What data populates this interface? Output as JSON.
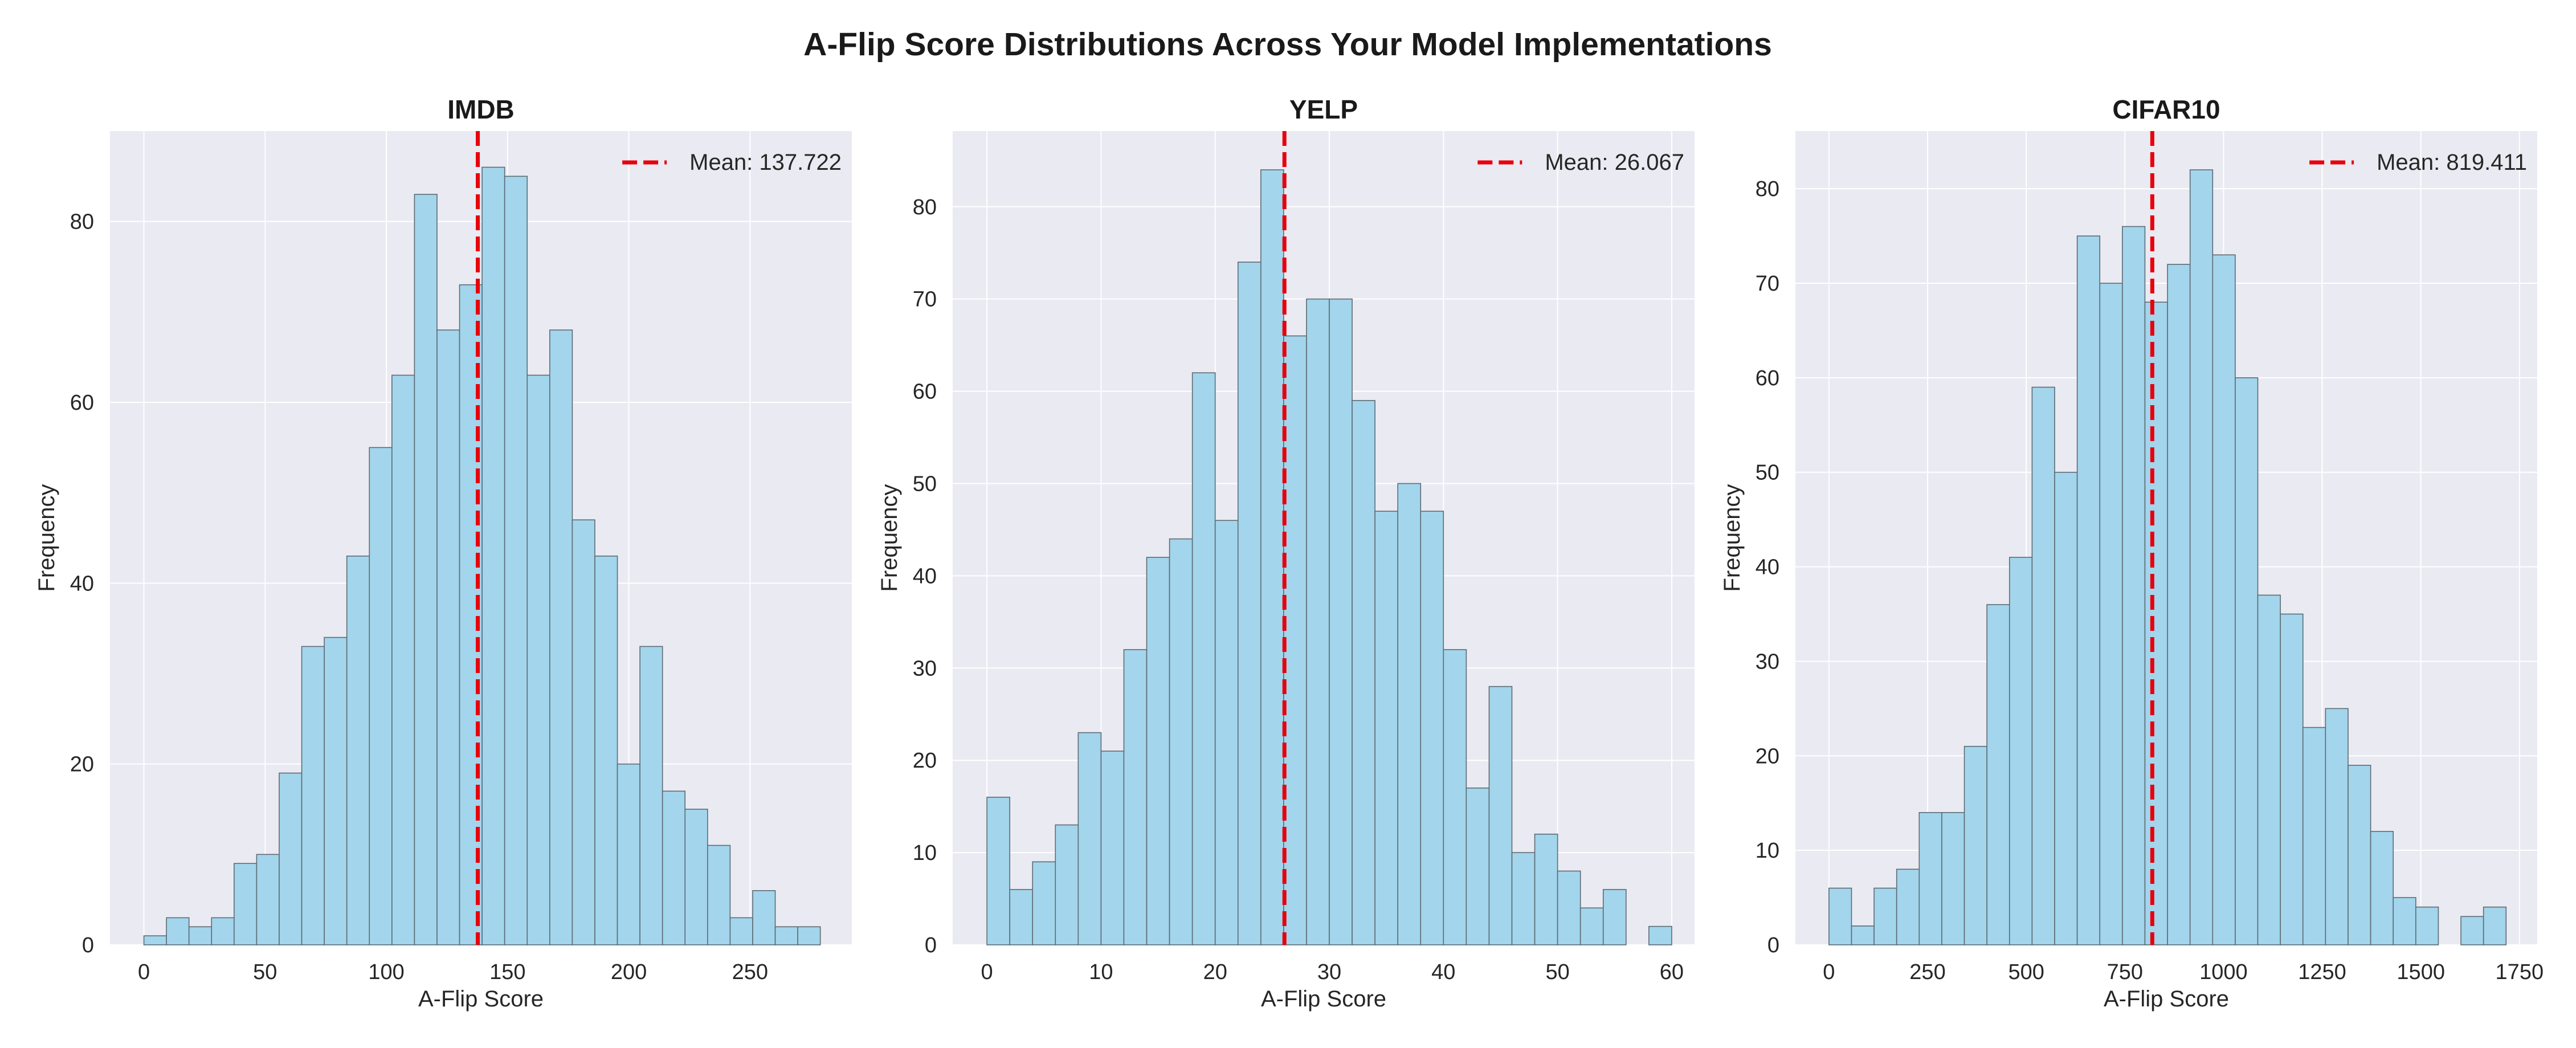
{
  "figure": {
    "suptitle": "A-Flip Score Distributions Across Your Model Implementations"
  },
  "chart_data": [
    {
      "type": "bar",
      "title": "IMDB",
      "xlabel": "A-Flip Score",
      "ylabel": "Frequency",
      "xlim": [
        -14,
        292
      ],
      "ylim": [
        0,
        90
      ],
      "xticks": [
        0,
        50,
        100,
        150,
        200,
        250
      ],
      "yticks": [
        0,
        20,
        40,
        60,
        80
      ],
      "grid": true,
      "legend": {
        "position": "top-right",
        "entries": [
          "Mean: 137.722"
        ]
      },
      "mean": 137.722,
      "bin_start": 0,
      "bin_width": 9.3,
      "bar_color": "#a3d5ec",
      "mean_color": "#e8000b",
      "values": [
        1,
        3,
        2,
        3,
        9,
        10,
        19,
        33,
        34,
        43,
        55,
        63,
        83,
        68,
        73,
        86,
        85,
        63,
        68,
        47,
        43,
        20,
        33,
        17,
        15,
        11,
        3,
        6,
        2,
        2
      ]
    },
    {
      "type": "bar",
      "title": "YELP",
      "xlabel": "A-Flip Score",
      "ylabel": "Frequency",
      "xlim": [
        -3,
        62
      ],
      "ylim": [
        0,
        88.2
      ],
      "xticks": [
        0,
        10,
        20,
        30,
        40,
        50,
        60
      ],
      "yticks": [
        0,
        10,
        20,
        30,
        40,
        50,
        60,
        70,
        80
      ],
      "grid": true,
      "legend": {
        "position": "top-right",
        "entries": [
          "Mean: 26.067"
        ]
      },
      "mean": 26.067,
      "bin_start": 0,
      "bin_width": 2.0,
      "bar_color": "#a3d5ec",
      "mean_color": "#e8000b",
      "values": [
        16,
        6,
        9,
        13,
        23,
        21,
        32,
        42,
        44,
        62,
        46,
        74,
        84,
        66,
        70,
        70,
        59,
        47,
        50,
        47,
        32,
        17,
        28,
        10,
        12,
        8,
        4,
        6,
        0,
        2
      ]
    },
    {
      "type": "bar",
      "title": "CIFAR10",
      "xlabel": "A-Flip Score",
      "ylabel": "Frequency",
      "xlim": [
        -85,
        1795
      ],
      "ylim": [
        0,
        86.1
      ],
      "xticks": [
        0,
        250,
        500,
        750,
        1000,
        1250,
        1500,
        1750
      ],
      "yticks": [
        0,
        10,
        20,
        30,
        40,
        50,
        60,
        70,
        80
      ],
      "grid": true,
      "legend": {
        "position": "top-right",
        "entries": [
          "Mean: 819.411"
        ]
      },
      "mean": 819.411,
      "bin_start": 0,
      "bin_width": 57.2,
      "bar_color": "#a3d5ec",
      "mean_color": "#e8000b",
      "values": [
        6,
        2,
        6,
        8,
        14,
        14,
        21,
        36,
        41,
        59,
        50,
        75,
        70,
        76,
        68,
        72,
        82,
        73,
        60,
        37,
        35,
        23,
        25,
        19,
        12,
        5,
        4,
        0,
        3,
        4
      ]
    }
  ]
}
